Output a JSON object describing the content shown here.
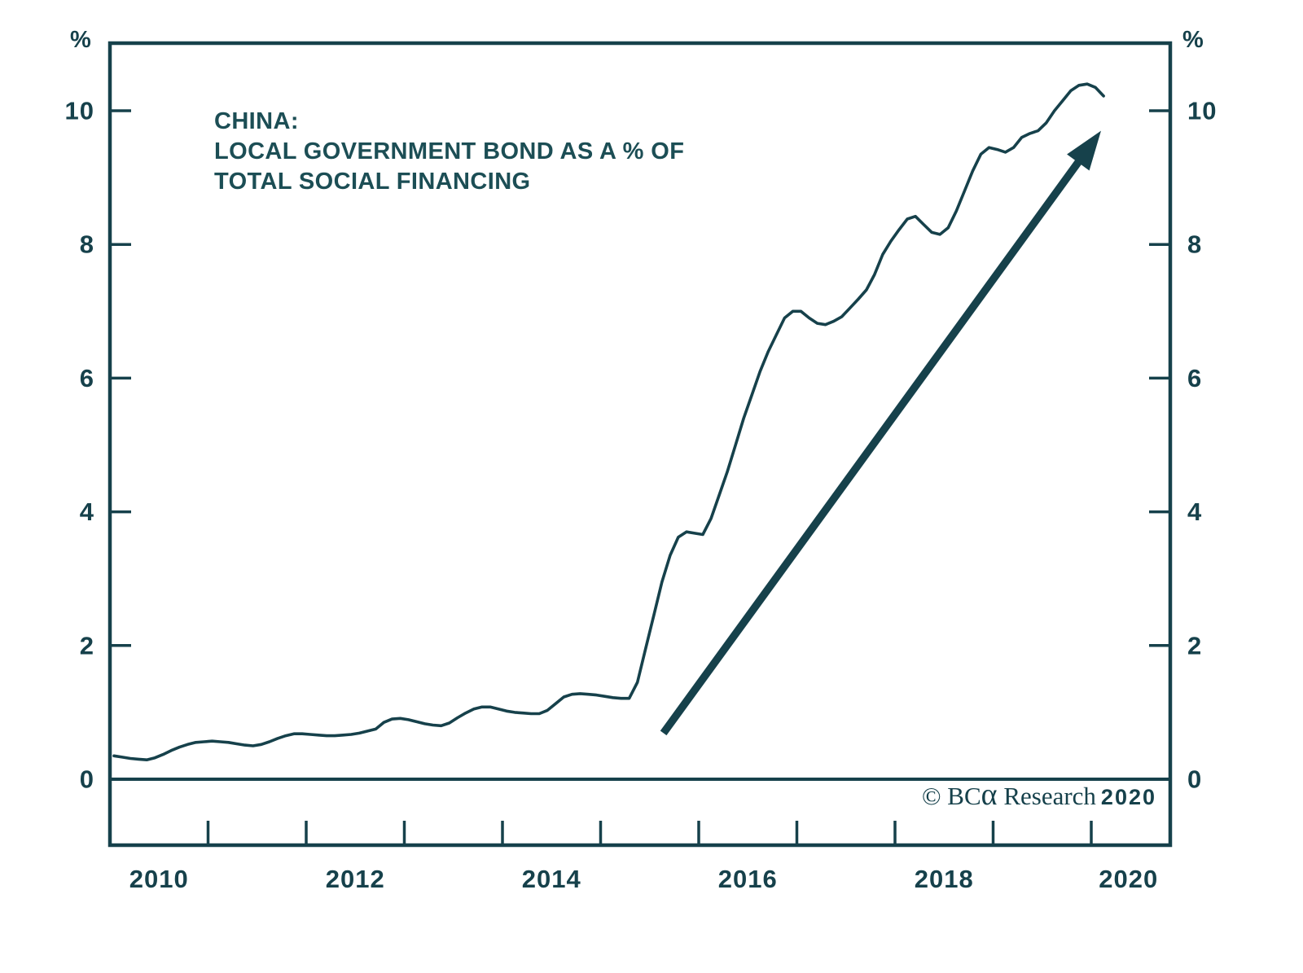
{
  "title": {
    "lines": [
      "CHINA:",
      "LOCAL GOVERNMENT BOND AS A % OF",
      "TOTAL SOCIAL FINANCING"
    ]
  },
  "watermark": {
    "prefix": "© BC",
    "alpha": "α",
    "name": " Research",
    "year": "2020"
  },
  "colors": {
    "ink": "#16414b",
    "title": "#1c4e55",
    "background": "#ffffff"
  },
  "axes": {
    "unit_left": "%",
    "unit_right": "%",
    "y_ticks": [
      0,
      2,
      4,
      6,
      8,
      10
    ],
    "y_range": [
      -1,
      11
    ],
    "x_domain_years": [
      2010.0,
      2020.8
    ],
    "x_tick_years": [
      2011,
      2012,
      2013,
      2014,
      2015,
      2016,
      2017,
      2018,
      2019,
      2020
    ],
    "x_labels": [
      {
        "text": "2010",
        "t": 2010.5
      },
      {
        "text": "2012",
        "t": 2012.5
      },
      {
        "text": "2014",
        "t": 2014.5
      },
      {
        "text": "2016",
        "t": 2016.5
      },
      {
        "text": "2018",
        "t": 2018.5
      },
      {
        "text": "2020",
        "t": 2020.38
      }
    ],
    "grid": "off",
    "zero_line": true
  },
  "chart_data": {
    "type": "line",
    "title": "CHINA: LOCAL GOVERNMENT BOND AS A % OF TOTAL SOCIAL FINANCING",
    "ylabel": "%",
    "ylim": [
      -1,
      11
    ],
    "legend": "none",
    "series": [
      {
        "name": "Local government bond as a % of total social financing",
        "frequency": "monthly",
        "start": "2010-01",
        "end": "2020-02",
        "values": [
          0.35,
          0.33,
          0.31,
          0.3,
          0.29,
          0.32,
          0.37,
          0.43,
          0.48,
          0.52,
          0.55,
          0.56,
          0.57,
          0.56,
          0.55,
          0.53,
          0.51,
          0.5,
          0.52,
          0.56,
          0.61,
          0.65,
          0.68,
          0.68,
          0.67,
          0.66,
          0.65,
          0.65,
          0.66,
          0.67,
          0.69,
          0.72,
          0.75,
          0.85,
          0.9,
          0.91,
          0.89,
          0.86,
          0.83,
          0.81,
          0.8,
          0.84,
          0.92,
          0.99,
          1.05,
          1.08,
          1.08,
          1.05,
          1.02,
          1.0,
          0.99,
          0.98,
          0.98,
          1.03,
          1.13,
          1.23,
          1.27,
          1.28,
          1.27,
          1.26,
          1.24,
          1.22,
          1.21,
          1.21,
          1.45,
          1.95,
          2.45,
          2.95,
          3.35,
          3.62,
          3.7,
          3.68,
          3.66,
          3.9,
          4.25,
          4.6,
          5.0,
          5.4,
          5.75,
          6.1,
          6.4,
          6.65,
          6.9,
          7.0,
          7.0,
          6.9,
          6.82,
          6.8,
          6.85,
          6.92,
          7.05,
          7.18,
          7.32,
          7.55,
          7.85,
          8.05,
          8.22,
          8.38,
          8.42,
          8.3,
          8.18,
          8.15,
          8.25,
          8.5,
          8.8,
          9.1,
          9.35,
          9.45,
          9.42,
          9.38,
          9.45,
          9.6,
          9.66,
          9.7,
          9.82,
          10.0,
          10.15,
          10.3,
          10.38,
          10.4,
          10.35,
          10.22
        ]
      }
    ],
    "annotations": [
      {
        "type": "arrow",
        "from_t": 2015.64,
        "from_v": 0.69,
        "to_t": 2020.1,
        "to_v": 9.7
      }
    ]
  }
}
